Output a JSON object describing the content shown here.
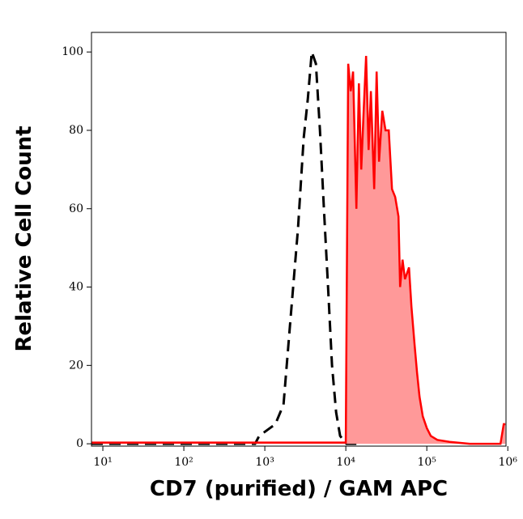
{
  "chart_data": {
    "type": "histogram-overlay",
    "x_label": "CD7 (purified) / GAM APC",
    "y_label": "Relative Cell Count",
    "xscale": "log",
    "xlim": [
      7.24,
      950000
    ],
    "ylim": [
      -0.6,
      105
    ],
    "xticks": [
      {
        "value": 10,
        "label": "10¹"
      },
      {
        "value": 100,
        "label": "10²"
      },
      {
        "value": 1000,
        "label": "10³"
      },
      {
        "value": 10000,
        "label": "10⁴"
      },
      {
        "value": 100000,
        "label": "10⁵"
      },
      {
        "value": 1000000,
        "label": "10⁶"
      }
    ],
    "yticks": [
      0,
      20,
      40,
      60,
      80,
      100
    ],
    "series": [
      {
        "color": "#000000",
        "dashed": true,
        "filled": false,
        "x": [
          7.24,
          53.7,
          759,
          851,
          1350,
          1700,
          2040,
          2570,
          3020,
          3390,
          3800,
          4270,
          4790,
          5370,
          6030,
          6760,
          7590,
          8510,
          10200,
          13500
        ],
        "values": [
          0,
          0,
          0,
          2,
          5,
          10,
          30,
          55,
          78,
          88,
          100,
          97,
          80,
          60,
          40,
          20,
          8,
          2,
          0,
          0
        ]
      },
      {
        "color": "#ff0000",
        "dashed": false,
        "filled": true,
        "fill": "#ff9999",
        "x": [
          7.24,
          10000,
          10700,
          11500,
          12300,
          13500,
          14500,
          15500,
          16600,
          17800,
          19100,
          20400,
          22400,
          24000,
          25700,
          28200,
          30900,
          33900,
          37200,
          40700,
          44700,
          46800,
          50100,
          53700,
          60300,
          64600,
          70800,
          75900,
          81300,
          89100,
          100000,
          112000,
          135000,
          191000,
          339000,
          813000,
          891000,
          933000
        ],
        "values": [
          0.3,
          0.3,
          97,
          90,
          95,
          60,
          92,
          70,
          85,
          99,
          75,
          90,
          65,
          95,
          72,
          85,
          80,
          80,
          65,
          63,
          58,
          40,
          47,
          42,
          45,
          35,
          25,
          18,
          12,
          7,
          4,
          2,
          1,
          0.5,
          0,
          0,
          5,
          5
        ]
      }
    ]
  }
}
